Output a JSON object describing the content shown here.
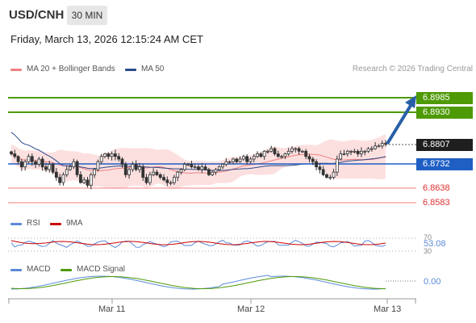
{
  "header": {
    "symbol": "USD/CNH",
    "timeframe": "30 MIN",
    "datetime": "Friday, March 13, 2026 12:15:24 AM CET"
  },
  "legend": {
    "bb_label": "MA 20 + Bollinger Bands",
    "ma50_label": "MA 50",
    "research": "Research © 2026 Trading Central"
  },
  "levels": {
    "r2": "6.8985",
    "r1": "6.8930",
    "last": "6.8807",
    "pivot": "6.8732",
    "s1": "6.8638",
    "s2": "6.8583"
  },
  "rsi": {
    "label": "RSI",
    "ma_label": "9MA",
    "value": "53.08",
    "upper": "70",
    "lower": "30"
  },
  "macd": {
    "label": "MACD",
    "signal_label": "MACD Signal",
    "value": "0.00"
  },
  "xaxis": [
    "Mar 11",
    "Mar 12",
    "Mar 13"
  ],
  "colors": {
    "resistance": "#4e9a06",
    "pivot": "#1f5fc4",
    "last": "#1f1f1f",
    "support": "#e03030",
    "bollinger_fill": "#fbdada",
    "ma20": "#f08080",
    "ma50": "#2a4a8a",
    "arrow": "#2a5fa8",
    "rsi": "#5b8ad8",
    "rsi_ma": "#cc0000",
    "macd": "#5b8ad8",
    "macd_signal": "#4e9a06"
  },
  "chart_data": {
    "type": "line",
    "price_series": [
      6.877,
      6.876,
      6.874,
      6.872,
      6.874,
      6.876,
      6.874,
      6.873,
      6.875,
      6.872,
      6.871,
      6.873,
      6.87,
      6.868,
      6.866,
      6.869,
      6.871,
      6.872,
      6.874,
      6.869,
      6.866,
      6.867,
      6.865,
      6.869,
      6.871,
      6.874,
      6.876,
      6.877,
      6.876,
      6.877,
      6.876,
      6.875,
      6.873,
      6.869,
      6.871,
      6.873,
      6.871,
      6.872,
      6.868,
      6.866,
      6.869,
      6.87,
      6.869,
      6.868,
      6.867,
      6.866,
      6.866,
      6.868,
      6.87,
      6.871,
      6.873,
      6.873,
      6.872,
      6.872,
      6.871,
      6.872,
      6.871,
      6.869,
      6.87,
      6.871,
      6.872,
      6.873,
      6.874,
      6.874,
      6.875,
      6.874,
      6.875,
      6.876,
      6.874,
      6.875,
      6.876,
      6.877,
      6.876,
      6.878,
      6.878,
      6.879,
      6.877,
      6.876,
      6.876,
      6.877,
      6.878,
      6.879,
      6.879,
      6.878,
      6.878,
      6.876,
      6.875,
      6.874,
      6.872,
      6.871,
      6.869,
      6.868,
      6.868,
      6.87,
      6.875,
      6.877,
      6.877,
      6.878,
      6.878,
      6.878,
      6.877,
      6.878,
      6.878,
      6.879,
      6.879,
      6.88,
      6.88,
      6.881,
      6.8807
    ],
    "ylim": [
      6.8575,
      6.9005
    ]
  }
}
